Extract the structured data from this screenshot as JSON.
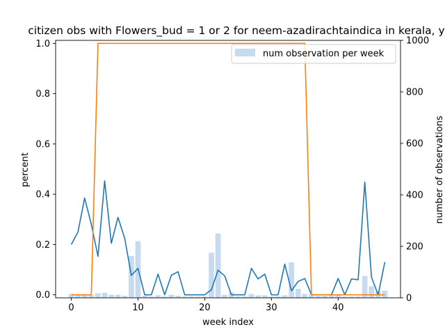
{
  "chart_data": {
    "type": "bar",
    "title": "citizen obs with Flowers_bud = 1 or 2 for neem-azadirachtaindica in kerala, y",
    "xlabel": "week index",
    "ylabel_left": "percent",
    "ylabel_right": "number of observations",
    "xlim": [
      -2.35,
      49.35
    ],
    "ylim_left": [
      -0.012,
      1.012
    ],
    "ylim_right": [
      0,
      1000
    ],
    "x_ticks": [
      0,
      10,
      20,
      30,
      40
    ],
    "y_ticks_left": [
      "0.0",
      "0.2",
      "0.4",
      "0.6",
      "0.8",
      "1.0"
    ],
    "y_ticks_right": [
      "0",
      "200",
      "400",
      "600",
      "800",
      "1000"
    ],
    "legend": {
      "position": "top-right",
      "bar_label": "num observation per week"
    },
    "colors": {
      "bars": "#c6dbef",
      "percent_line": "#1f77b4",
      "flag_line": "#ff7f0e"
    },
    "x": [
      0,
      1,
      2,
      3,
      4,
      5,
      6,
      7,
      8,
      9,
      10,
      11,
      12,
      13,
      14,
      15,
      16,
      17,
      18,
      19,
      20,
      21,
      22,
      23,
      24,
      25,
      26,
      27,
      28,
      29,
      30,
      31,
      32,
      33,
      34,
      35,
      36,
      37,
      38,
      39,
      40,
      41,
      42,
      43,
      44,
      45,
      46,
      47
    ],
    "series": [
      {
        "axis": "right",
        "kind": "bar",
        "values": [
          15,
          10,
          10,
          10,
          18,
          20,
          12,
          12,
          8,
          162,
          220,
          8,
          5,
          10,
          5,
          12,
          8,
          5,
          5,
          5,
          5,
          175,
          250,
          12,
          22,
          5,
          5,
          15,
          10,
          10,
          5,
          5,
          10,
          138,
          35,
          15,
          15,
          8,
          8,
          12,
          10,
          5,
          5,
          5,
          85,
          45,
          25,
          28
        ]
      },
      {
        "axis": "left",
        "kind": "line",
        "color": "#1f77b4",
        "values": [
          0.2,
          0.25,
          0.385,
          0.28,
          0.153,
          0.453,
          0.205,
          0.308,
          0.225,
          0.077,
          0.105,
          0.0,
          0.0,
          0.082,
          0.0,
          0.078,
          0.092,
          0.0,
          0.0,
          0.0,
          0.0,
          0.02,
          0.098,
          0.075,
          0.0,
          0.0,
          0.0,
          0.105,
          0.063,
          0.082,
          0.0,
          0.0,
          0.122,
          0.016,
          0.053,
          0.065,
          0.0,
          0.0,
          0.0,
          0.0,
          0.065,
          0.0,
          0.063,
          0.06,
          0.448,
          0.07,
          0.0,
          0.13
        ]
      },
      {
        "axis": "left",
        "kind": "line",
        "color": "#ff7f0e",
        "values": [
          0,
          0,
          0,
          0,
          1,
          1,
          1,
          1,
          1,
          1,
          1,
          1,
          1,
          1,
          1,
          1,
          1,
          1,
          1,
          1,
          1,
          1,
          1,
          1,
          1,
          1,
          1,
          1,
          1,
          1,
          1,
          1,
          1,
          1,
          1,
          1,
          0,
          0,
          0,
          0,
          0,
          0,
          0,
          0,
          0,
          0,
          0,
          0
        ]
      }
    ]
  }
}
